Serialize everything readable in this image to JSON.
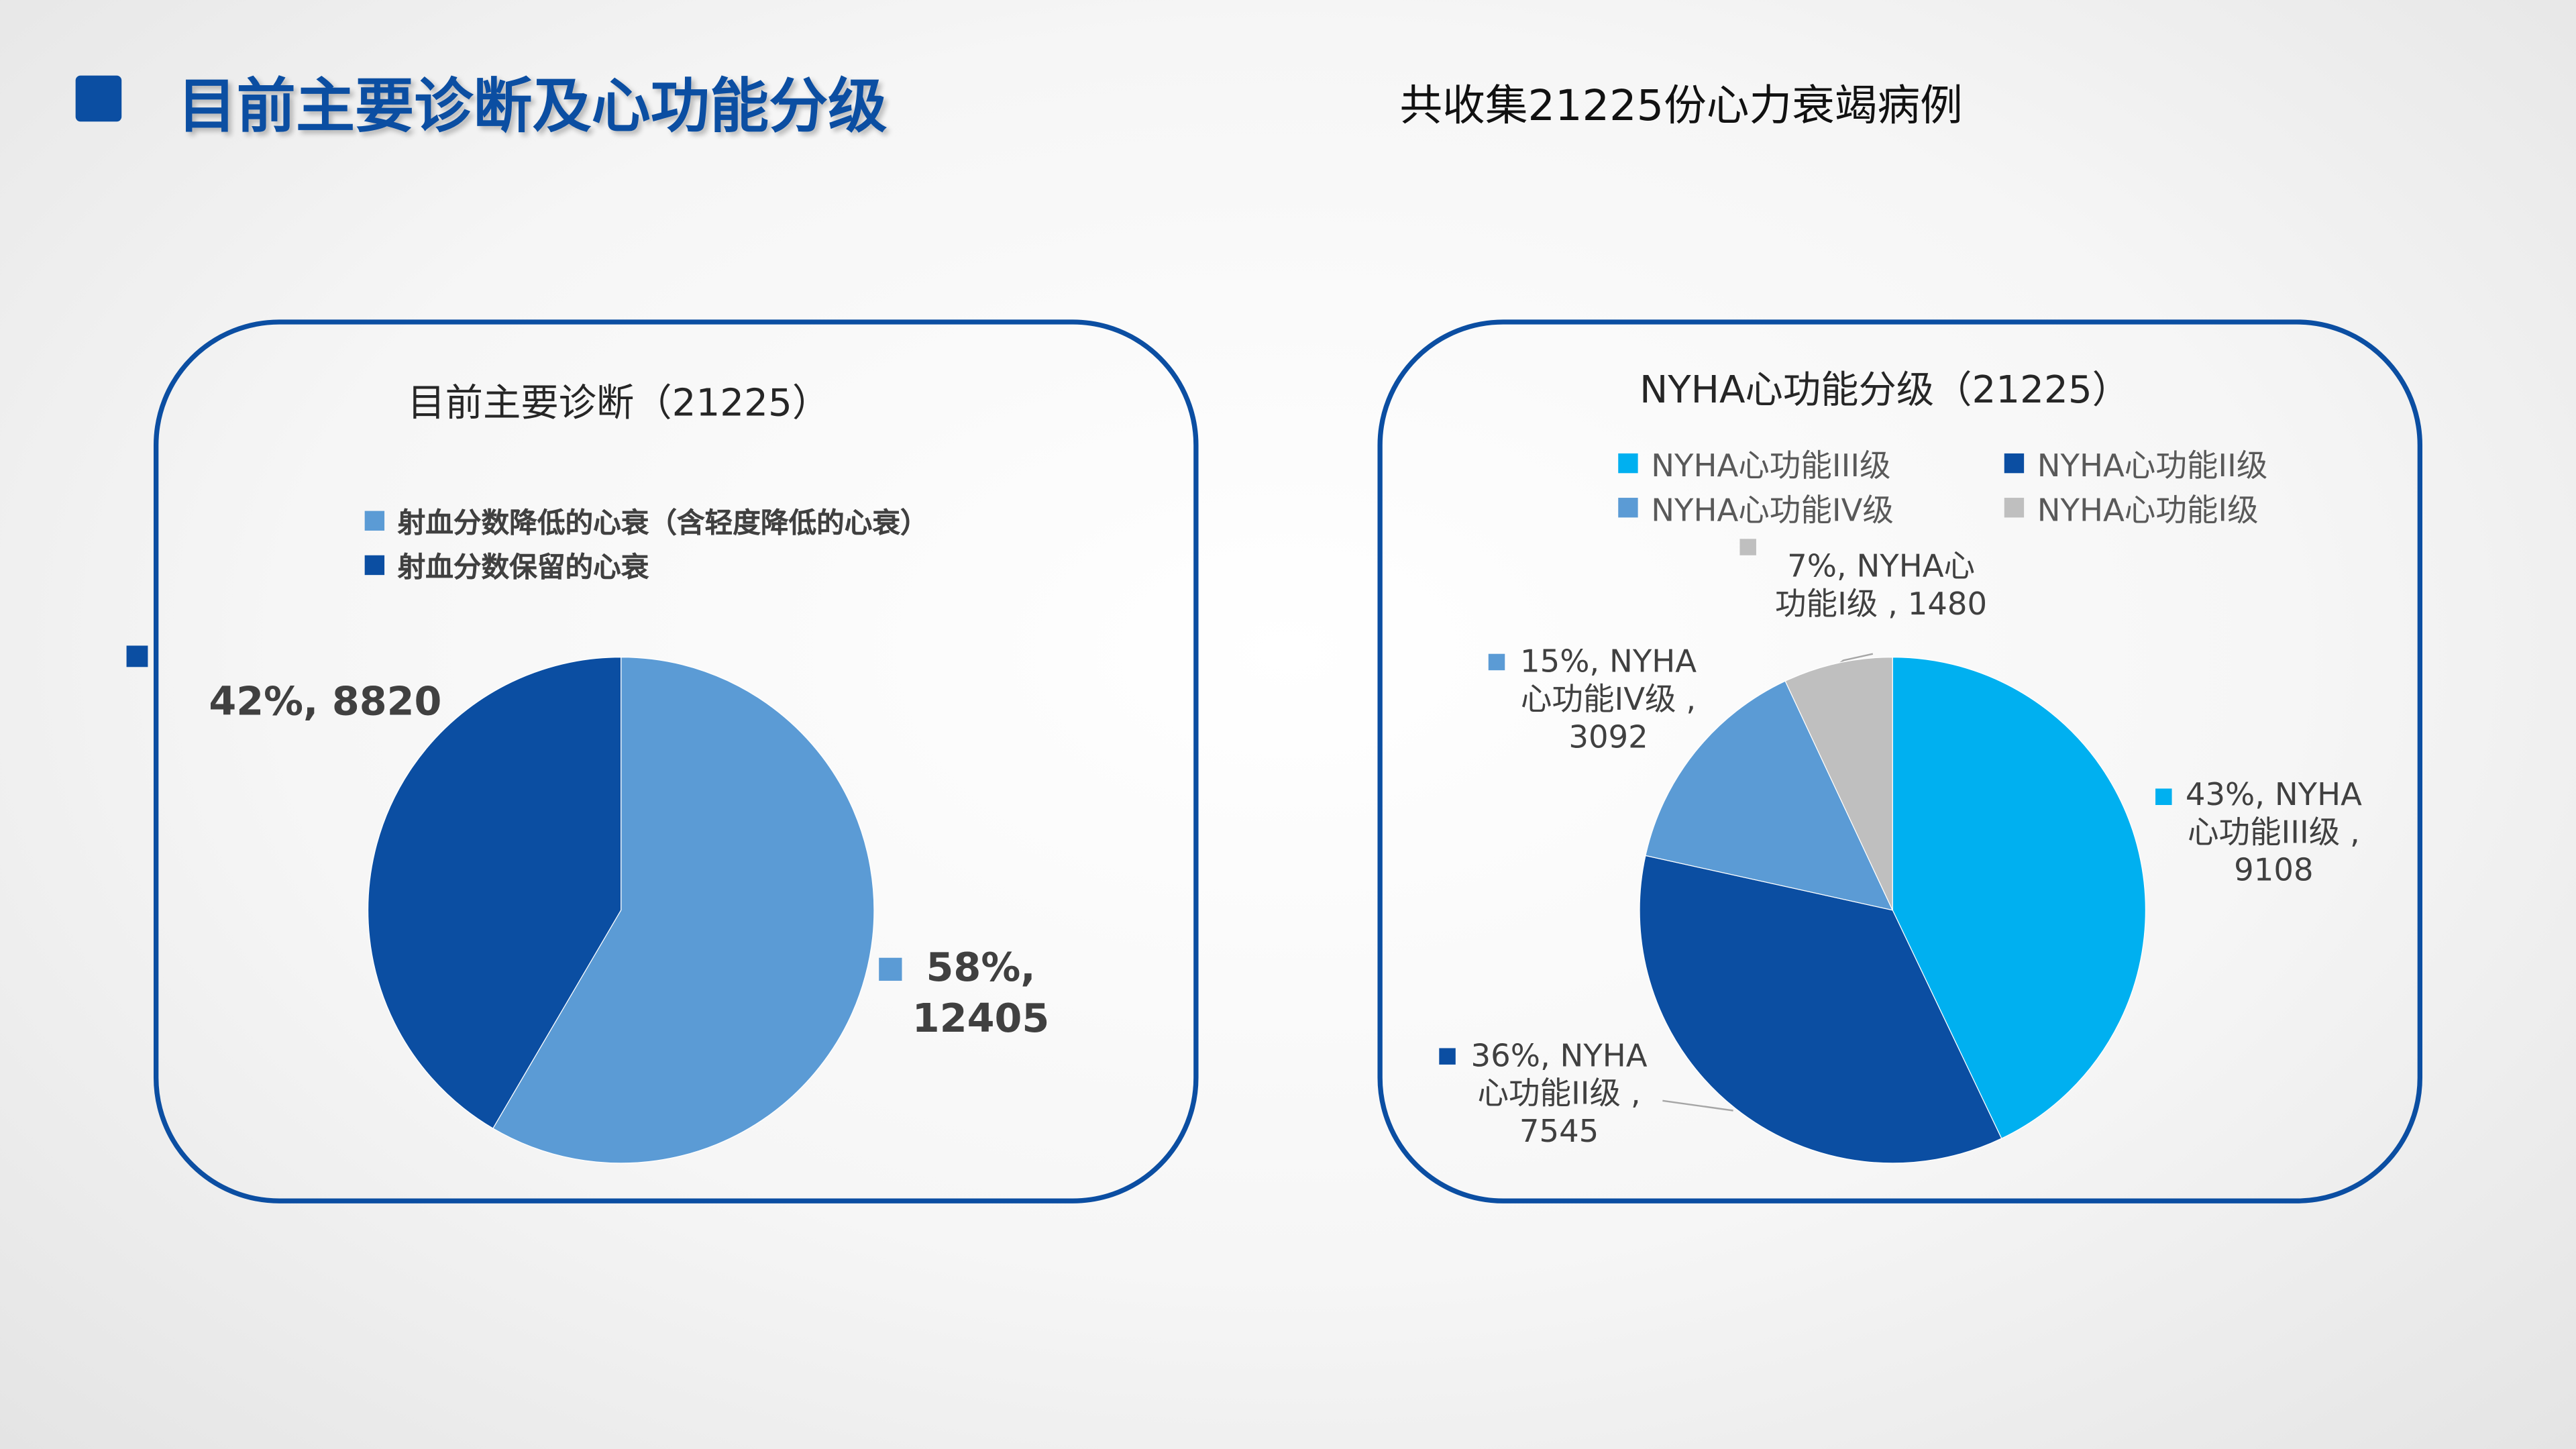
{
  "header": {
    "title": "目前主要诊断及心功能分级",
    "subtitle": "共收集21225份心力衰竭病例"
  },
  "chart_data": [
    {
      "type": "pie",
      "title": "目前主要诊断（21225）",
      "categories": [
        "射血分数降低的心衰（含轻度降低的心衰）",
        "射血分数保留的心衰"
      ],
      "values": [
        12405,
        8820
      ],
      "value_labels": [
        "58%,\n12405",
        "42%, 8820"
      ],
      "colors": [
        "#5b9bd5",
        "#0b4ea2"
      ],
      "legend": "top"
    },
    {
      "type": "pie",
      "title": "NYHA心功能分级（21225）",
      "categories": [
        "NYHA心功能III级",
        "NYHA心功能II级",
        "NYHA心功能IV级",
        "NYHA心功能I级"
      ],
      "values": [
        9108,
        7545,
        3092,
        1480
      ],
      "value_labels": [
        "43%, NYHA\n心功能III级 ,\n9108",
        "36%, NYHA\n心功能II级 ,\n7545",
        "15%, NYHA\n心功能IV级 ,\n3092",
        "7%, NYHA心\n功能I级 , 1480"
      ],
      "colors": [
        "#00b0f0",
        "#0b4ea2",
        "#5b9bd5",
        "#bfbfbf"
      ],
      "legend": "top"
    }
  ]
}
